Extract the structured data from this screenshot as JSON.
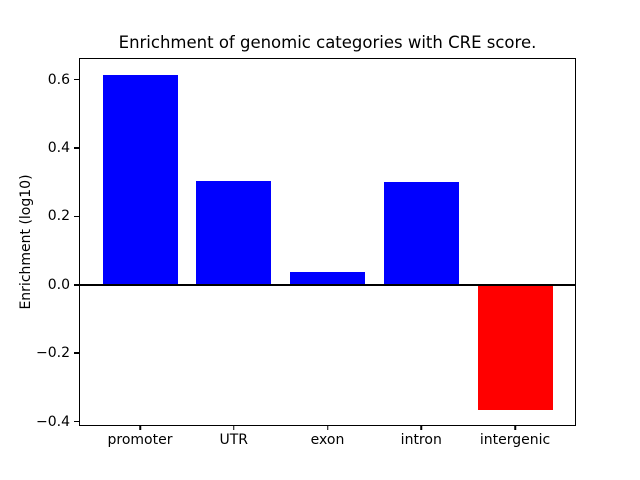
{
  "figure": {
    "background": "#ffffff",
    "axis_color": "#000000"
  },
  "chart_data": {
    "type": "bar",
    "title": "Enrichment of genomic categories with CRE score.",
    "xlabel": "",
    "ylabel": "Enrichment (log10)",
    "categories": [
      "promoter",
      "UTR",
      "exon",
      "intron",
      "intergenic"
    ],
    "values": [
      0.612,
      0.304,
      0.036,
      0.299,
      -0.365
    ],
    "bar_colors": [
      "#0000ff",
      "#0000ff",
      "#0000ff",
      "#0000ff",
      "#ff0000"
    ],
    "bar_width": 0.8,
    "ylim": [
      -0.41,
      0.66
    ],
    "xlim": [
      -0.64,
      4.64
    ],
    "yticks": [
      0.6,
      0.4,
      0.2,
      0.0,
      -0.2,
      -0.4
    ],
    "ytick_labels": [
      "0.6",
      "0.4",
      "0.2",
      "0.0",
      "−0.2",
      "−0.4"
    ],
    "zero_line": true,
    "grid": false,
    "legend": null
  }
}
